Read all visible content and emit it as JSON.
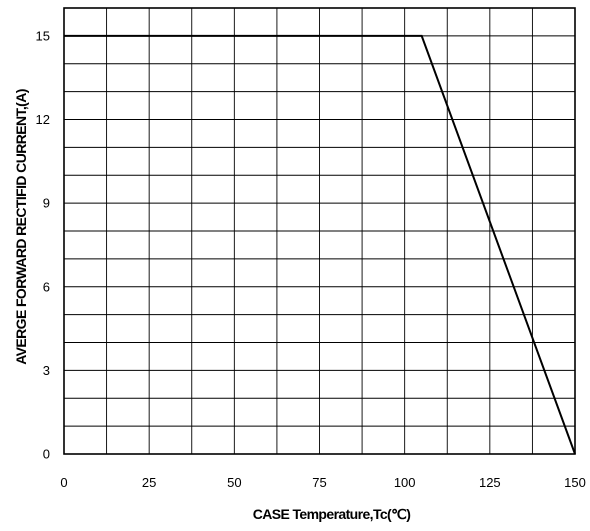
{
  "chart_data": {
    "type": "line",
    "title": "",
    "xlabel": "CASE Temperature,Tc(℃)",
    "ylabel": "AVERGE FORWARD RECTIFID CURRENT,(A)",
    "xlim": [
      0,
      150
    ],
    "ylim": [
      0,
      16
    ],
    "grid": true,
    "x_ticks": [
      0,
      25,
      50,
      75,
      100,
      125,
      150
    ],
    "y_ticks": [
      0,
      3,
      6,
      9,
      12,
      15
    ],
    "x_minor_step": 12.5,
    "y_minor_step": 1,
    "series": [
      {
        "x": [
          0,
          105,
          150
        ],
        "y": [
          15,
          15,
          0
        ]
      }
    ],
    "colors": {
      "line": "#000000",
      "grid": "#000000",
      "frame": "#000000"
    }
  }
}
